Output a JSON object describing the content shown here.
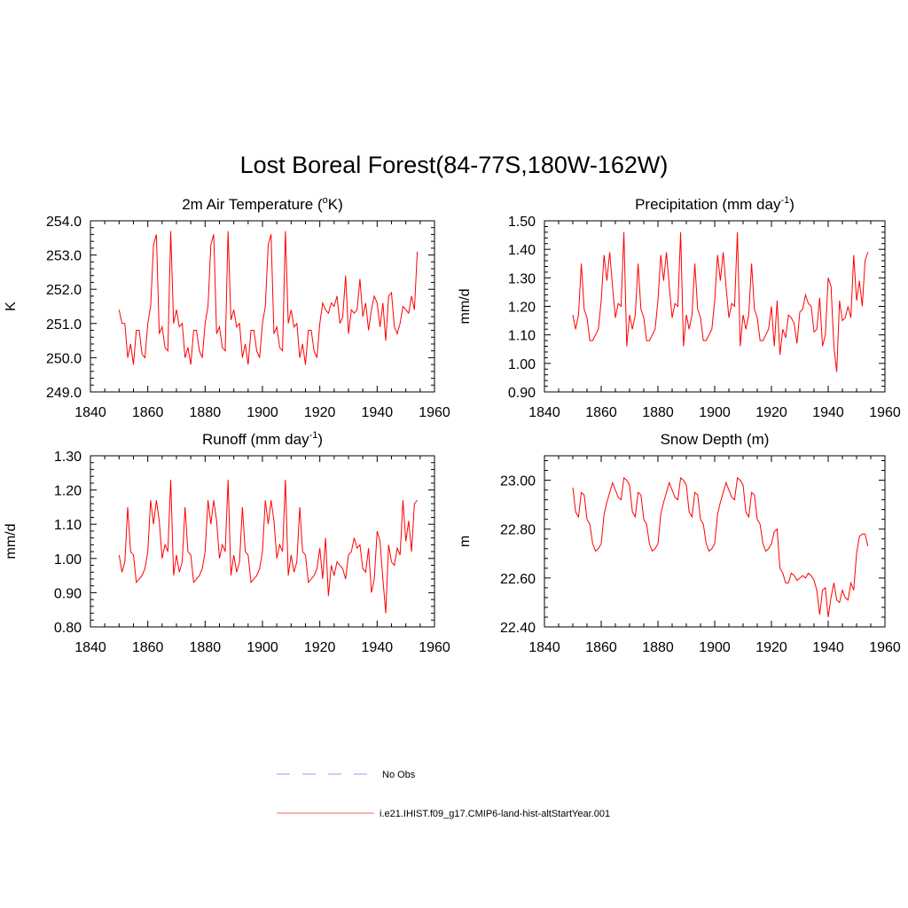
{
  "figure": {
    "title": "Lost Boreal Forest(84-77S,180W-162W)"
  },
  "legend": {
    "items": [
      {
        "label": "No Obs",
        "color": "#9999ff",
        "dash": true
      },
      {
        "label": "i.e21.IHIST.f09_g17.CMIP6-land-hist-altStartYear.001",
        "color": "#ff6666",
        "dash": false
      }
    ]
  },
  "chart_data": [
    {
      "type": "line",
      "title_main": "2m Air Temperature (",
      "title_sup": "o",
      "title_end": "K)",
      "ylabel": "K",
      "xlim": [
        1840,
        1960
      ],
      "ylim": [
        249,
        254
      ],
      "xticks": [
        "1840",
        "1860",
        "1880",
        "1900",
        "1920",
        "1940",
        "1960"
      ],
      "yticks": [
        "249.0",
        "250.0",
        "251.0",
        "252.0",
        "253.0",
        "254.0"
      ],
      "series": [
        {
          "color": "#ff0000",
          "x_start": 1850,
          "values": [
            251.4,
            251.0,
            251.0,
            250.0,
            250.4,
            249.8,
            250.8,
            250.8,
            250.1,
            250.0,
            251.0,
            251.5,
            253.3,
            253.6,
            250.7,
            250.9,
            250.3,
            250.2,
            253.7,
            251.0,
            251.4,
            250.9,
            251.0,
            250.0,
            250.3,
            249.8,
            250.8,
            250.8,
            250.2,
            250.0,
            251.0,
            251.5,
            253.3,
            253.6,
            250.7,
            250.9,
            250.3,
            250.2,
            253.7,
            251.1,
            251.4,
            250.9,
            251.0,
            250.0,
            250.4,
            249.8,
            250.8,
            250.8,
            250.2,
            250.0,
            251.0,
            251.5,
            253.3,
            253.6,
            250.7,
            250.9,
            250.3,
            250.2,
            253.7,
            251.0,
            251.4,
            250.9,
            251.0,
            250.0,
            250.4,
            249.8,
            250.8,
            250.8,
            250.2,
            250.0,
            251.0,
            251.6,
            251.4,
            251.3,
            251.6,
            251.5,
            251.8,
            251.0,
            251.2,
            252.4,
            250.7,
            251.4,
            251.3,
            251.4,
            252.3,
            251.2,
            251.6,
            250.8,
            251.4,
            251.8,
            251.6,
            250.9,
            251.6,
            250.5,
            251.8,
            251.9,
            250.9,
            250.7,
            251.0,
            251.5,
            251.4,
            251.3,
            251.8,
            251.4,
            253.1
          ]
        }
      ]
    },
    {
      "type": "line",
      "title_main": "Precipitation (mm day",
      "title_sup": "-1",
      "title_end": ")",
      "ylabel": "mm/d",
      "xlim": [
        1840,
        1960
      ],
      "ylim": [
        0.9,
        1.5
      ],
      "xticks": [
        "1840",
        "1860",
        "1880",
        "1900",
        "1920",
        "1940",
        "1960"
      ],
      "yticks": [
        "0.90",
        "1.00",
        "1.10",
        "1.20",
        "1.30",
        "1.40",
        "1.50"
      ],
      "series": [
        {
          "color": "#ff0000",
          "x_start": 1850,
          "values": [
            1.17,
            1.12,
            1.17,
            1.35,
            1.19,
            1.16,
            1.08,
            1.08,
            1.1,
            1.12,
            1.22,
            1.38,
            1.29,
            1.39,
            1.27,
            1.16,
            1.21,
            1.2,
            1.46,
            1.06,
            1.17,
            1.12,
            1.17,
            1.35,
            1.19,
            1.16,
            1.08,
            1.08,
            1.1,
            1.12,
            1.22,
            1.38,
            1.29,
            1.39,
            1.27,
            1.16,
            1.21,
            1.2,
            1.46,
            1.06,
            1.17,
            1.12,
            1.17,
            1.35,
            1.19,
            1.16,
            1.08,
            1.08,
            1.1,
            1.12,
            1.22,
            1.38,
            1.29,
            1.39,
            1.27,
            1.16,
            1.21,
            1.2,
            1.46,
            1.06,
            1.17,
            1.12,
            1.17,
            1.35,
            1.19,
            1.16,
            1.08,
            1.08,
            1.1,
            1.12,
            1.2,
            1.06,
            1.22,
            1.03,
            1.12,
            1.09,
            1.17,
            1.16,
            1.14,
            1.07,
            1.18,
            1.19,
            1.24,
            1.21,
            1.2,
            1.11,
            1.12,
            1.23,
            1.06,
            1.1,
            1.3,
            1.27,
            1.06,
            0.97,
            1.22,
            1.15,
            1.16,
            1.2,
            1.16,
            1.38,
            1.22,
            1.29,
            1.2,
            1.36,
            1.39
          ]
        }
      ]
    },
    {
      "type": "line",
      "title_main": "Runoff (mm day",
      "title_sup": "-1",
      "title_end": ")",
      "ylabel": "mm/d",
      "xlim": [
        1840,
        1960
      ],
      "ylim": [
        0.8,
        1.3
      ],
      "xticks": [
        "1840",
        "1860",
        "1880",
        "1900",
        "1920",
        "1940",
        "1960"
      ],
      "yticks": [
        "0.80",
        "0.90",
        "1.00",
        "1.10",
        "1.20",
        "1.30"
      ],
      "series": [
        {
          "color": "#ff0000",
          "x_start": 1850,
          "values": [
            1.01,
            0.96,
            0.99,
            1.15,
            1.02,
            1.01,
            0.93,
            0.94,
            0.95,
            0.97,
            1.02,
            1.17,
            1.1,
            1.17,
            1.11,
            1.0,
            1.04,
            1.02,
            1.23,
            0.95,
            1.01,
            0.96,
            0.99,
            1.15,
            1.02,
            1.01,
            0.93,
            0.94,
            0.95,
            0.97,
            1.02,
            1.17,
            1.1,
            1.17,
            1.11,
            1.0,
            1.04,
            1.02,
            1.23,
            0.95,
            1.01,
            0.96,
            0.99,
            1.15,
            1.02,
            1.01,
            0.93,
            0.94,
            0.95,
            0.97,
            1.02,
            1.17,
            1.1,
            1.17,
            1.11,
            1.0,
            1.04,
            1.02,
            1.23,
            0.95,
            1.01,
            0.96,
            0.99,
            1.15,
            1.02,
            1.01,
            0.93,
            0.94,
            0.95,
            0.97,
            1.03,
            0.94,
            1.06,
            0.89,
            0.98,
            0.95,
            0.99,
            0.98,
            0.97,
            0.94,
            1.01,
            1.02,
            1.06,
            1.03,
            1.04,
            0.97,
            0.96,
            1.03,
            0.9,
            0.94,
            1.08,
            1.05,
            0.94,
            0.84,
            1.04,
            0.99,
            0.98,
            1.03,
            1.01,
            1.17,
            1.05,
            1.11,
            1.02,
            1.16,
            1.17
          ]
        }
      ]
    },
    {
      "type": "line",
      "title_main": "Snow Depth (m)",
      "title_sup": "",
      "title_end": "",
      "ylabel": "m",
      "xlim": [
        1840,
        1960
      ],
      "ylim": [
        22.4,
        23.1
      ],
      "xticks": [
        "1840",
        "1860",
        "1880",
        "1900",
        "1920",
        "1940",
        "1960"
      ],
      "yticks": [
        "22.40",
        "22.60",
        "22.80",
        "23.00"
      ],
      "series": [
        {
          "color": "#ff0000",
          "x_start": 1850,
          "values": [
            22.97,
            22.87,
            22.85,
            22.95,
            22.94,
            22.84,
            22.82,
            22.74,
            22.71,
            22.72,
            22.74,
            22.86,
            22.91,
            22.95,
            22.99,
            22.96,
            22.93,
            22.92,
            23.01,
            23.0,
            22.98,
            22.87,
            22.85,
            22.95,
            22.94,
            22.84,
            22.82,
            22.74,
            22.71,
            22.72,
            22.74,
            22.86,
            22.91,
            22.95,
            22.99,
            22.96,
            22.93,
            22.92,
            23.01,
            23.0,
            22.98,
            22.87,
            22.85,
            22.95,
            22.94,
            22.84,
            22.82,
            22.74,
            22.71,
            22.72,
            22.74,
            22.86,
            22.91,
            22.95,
            22.99,
            22.96,
            22.93,
            22.92,
            23.01,
            23.0,
            22.98,
            22.87,
            22.85,
            22.95,
            22.94,
            22.84,
            22.82,
            22.74,
            22.71,
            22.72,
            22.74,
            22.79,
            22.8,
            22.64,
            22.62,
            22.58,
            22.58,
            22.62,
            22.61,
            22.59,
            22.6,
            22.61,
            22.6,
            22.62,
            22.61,
            22.59,
            22.55,
            22.45,
            22.55,
            22.56,
            22.44,
            22.52,
            22.58,
            22.51,
            22.5,
            22.55,
            22.52,
            22.51,
            22.58,
            22.55,
            22.7,
            22.77,
            22.78,
            22.78,
            22.73
          ]
        }
      ]
    }
  ]
}
